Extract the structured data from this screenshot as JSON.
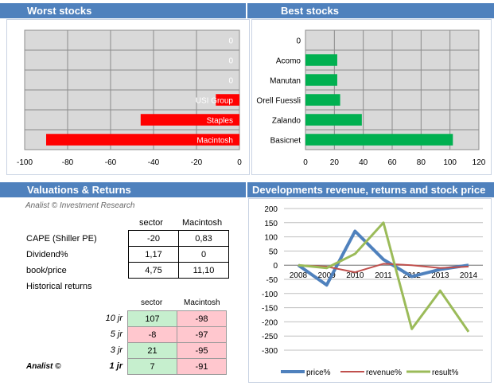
{
  "worst": {
    "title": "Worst stocks",
    "chart_data": {
      "type": "bar",
      "orientation": "horizontal",
      "categories": [
        "0",
        "0",
        "0",
        "USI Group",
        "Staples",
        "Macintosh"
      ],
      "values": [
        0,
        0,
        0,
        -11,
        -46,
        -90
      ],
      "xlim": [
        -100,
        0
      ],
      "xticks": [
        -100,
        -80,
        -60,
        -40,
        -20,
        0
      ],
      "bar_color": "#ff0000",
      "label_position": "inside"
    }
  },
  "best": {
    "title": "Best stocks",
    "chart_data": {
      "type": "bar",
      "orientation": "horizontal",
      "categories": [
        "0",
        "Acomo",
        "Manutan",
        "Orell Fuessli",
        "Zalando",
        "Basicnet"
      ],
      "values": [
        0,
        22,
        22,
        24,
        39,
        102
      ],
      "xlim": [
        0,
        120
      ],
      "xticks": [
        0,
        20,
        40,
        60,
        80,
        100,
        120
      ],
      "bar_color": "#00b050",
      "label_position": "axis"
    }
  },
  "valuations": {
    "title": "Valuations & Returns",
    "brand": "Analist © Investment Research",
    "header_sector": "sector",
    "header_company": "Macintosh",
    "rows": [
      {
        "label": "CAPE (Shiller PE)",
        "sector": "-20",
        "company": "0,83"
      },
      {
        "label": "Dividend%",
        "sector": "1,17",
        "company": "0"
      },
      {
        "label": "book/price",
        "sector": "4,75",
        "company": "11,10"
      }
    ],
    "hist_title": "Historical returns",
    "hist_header_sector": "sector",
    "hist_header_company": "Macintosh",
    "hist_rows": [
      {
        "period": "10 jr",
        "sector": "107",
        "company": "-98"
      },
      {
        "period": "5 jr",
        "sector": "-8",
        "company": "-97"
      },
      {
        "period": "3 jr",
        "sector": "21",
        "company": "-95"
      },
      {
        "period": "1 jr",
        "sector": "7",
        "company": "-91"
      }
    ],
    "footer_brand": "Analist ©"
  },
  "developments": {
    "title": "Developments revenue, returns and stock price",
    "chart_data": {
      "type": "line",
      "x": [
        "2008",
        "2009",
        "2010",
        "2011",
        "2012",
        "2013",
        "2014"
      ],
      "ylim": [
        -300,
        200
      ],
      "yticks": [
        200,
        150,
        100,
        50,
        0,
        -50,
        -100,
        -150,
        -200,
        -250,
        -300
      ],
      "series": [
        {
          "name": "price%",
          "color": "#4f81bd",
          "values": [
            0,
            -70,
            120,
            20,
            -40,
            -15,
            0
          ]
        },
        {
          "name": "revenue%",
          "color": "#c0504d",
          "values": [
            0,
            -5,
            -25,
            5,
            0,
            -10,
            -5
          ]
        },
        {
          "name": "result%",
          "color": "#9bbb59",
          "values": [
            0,
            -10,
            40,
            150,
            -225,
            -90,
            -235
          ]
        }
      ]
    }
  }
}
